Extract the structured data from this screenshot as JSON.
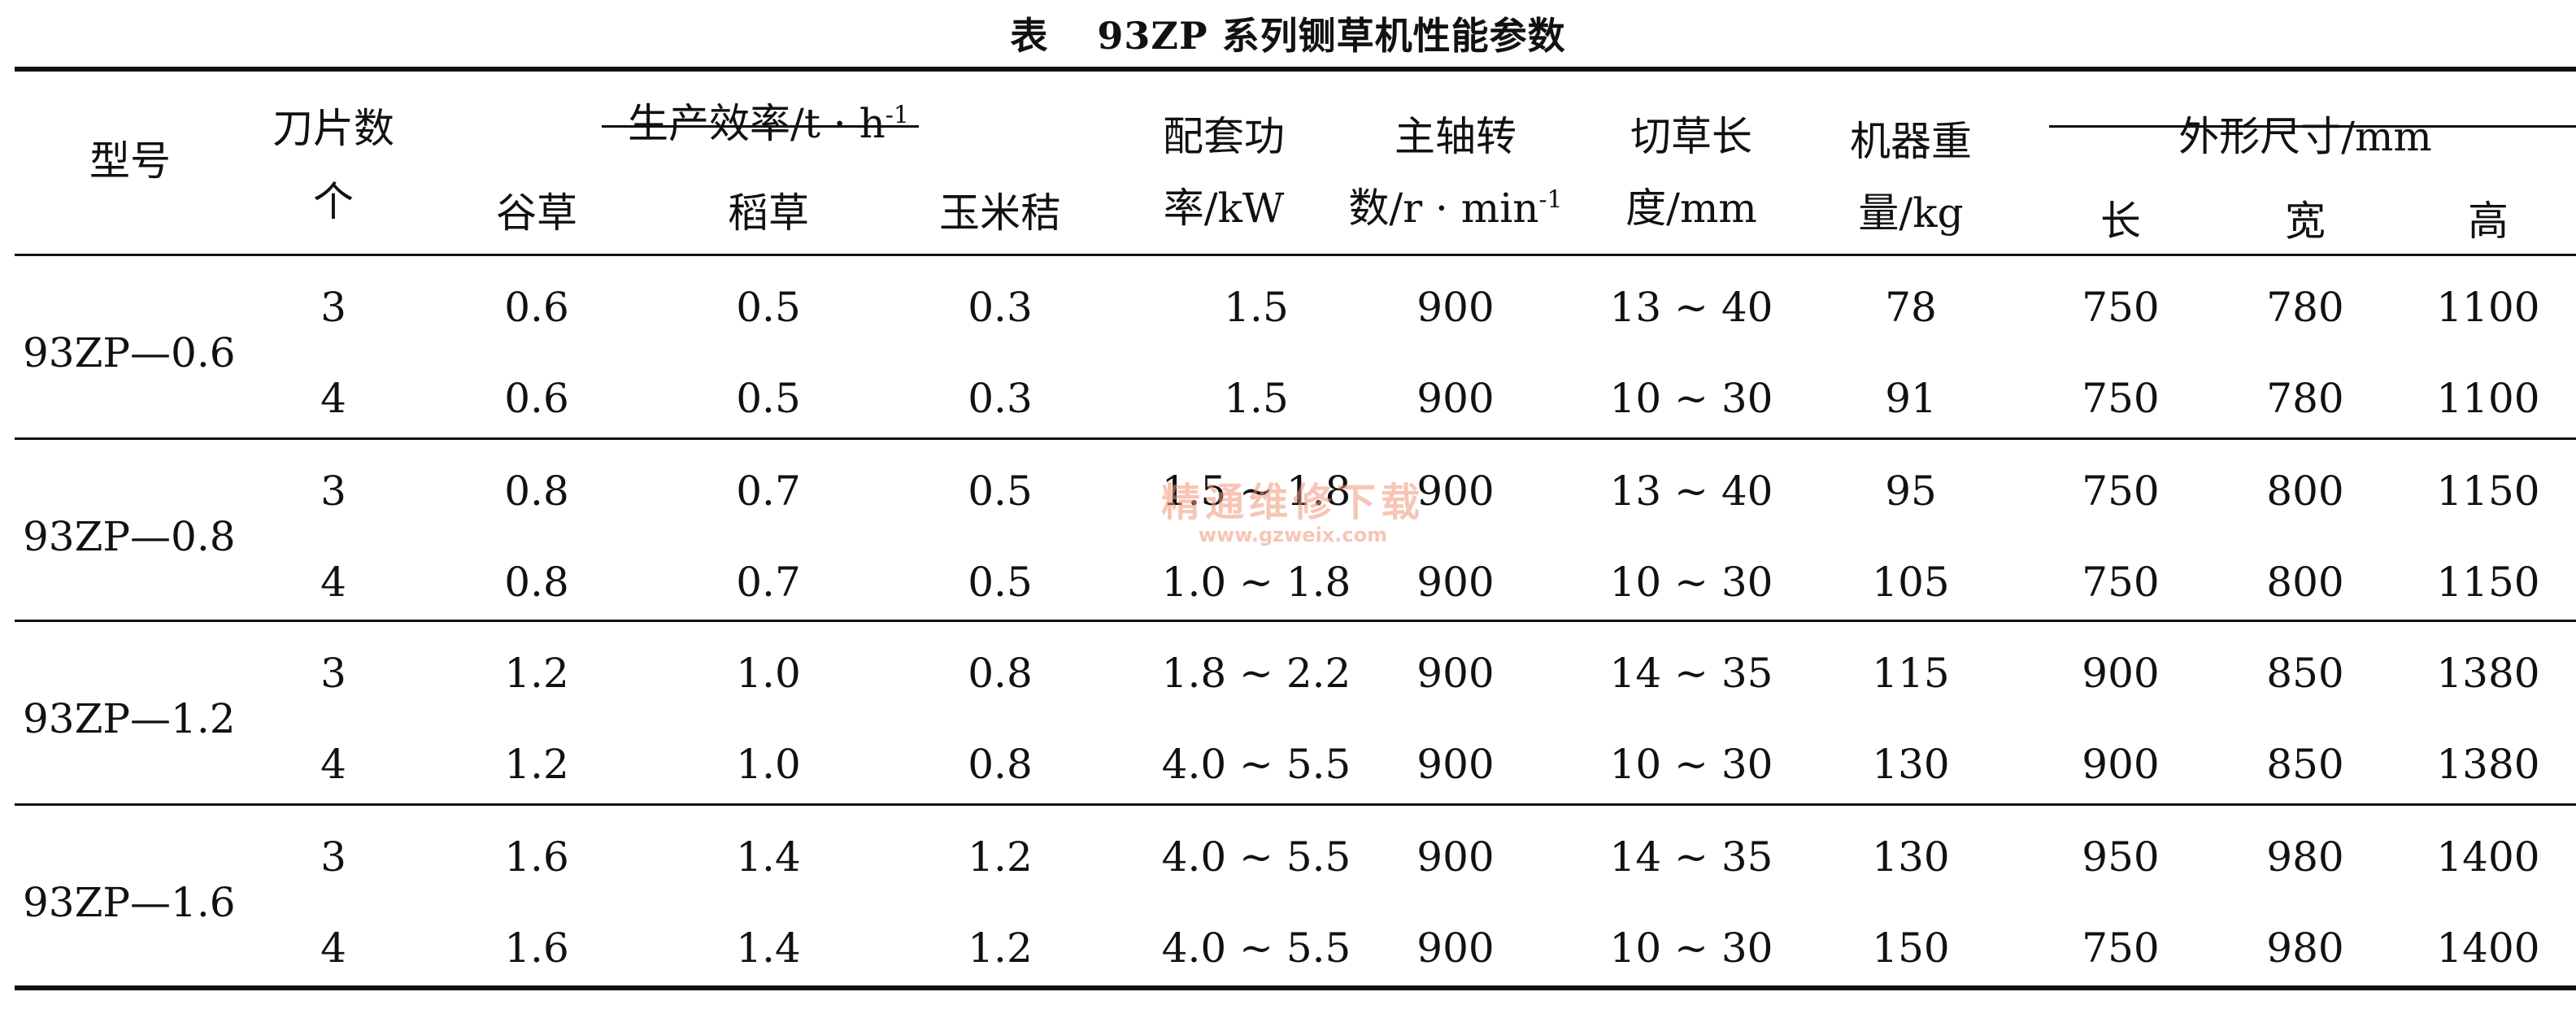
{
  "table_title": {
    "lead": "表",
    "text": "93ZP 系列铡草机性能参数"
  },
  "headers": {
    "model": "型号",
    "blades_line1": "刀片数",
    "blades_line2": "个",
    "efficiency": "生产效率/t · h",
    "efficiency_sup": "-1",
    "millet": "谷草",
    "rice": "稻草",
    "corn": "玉米秸",
    "power_line1": "配套功",
    "power_line2": "率/kW",
    "speed_line1": "主轴转",
    "speed_line2": "数/r · min",
    "speed_sup": "-1",
    "cut_line1": "切草长",
    "cut_line2": "度/mm",
    "weight_line1": "机器重",
    "weight_line2": "量/kg",
    "dims": "外形尺寸/mm",
    "length": "长",
    "width": "宽",
    "height": "高"
  },
  "groups": [
    {
      "model": "93ZP—0.6",
      "rows": [
        {
          "blades": "3",
          "millet": "0.6",
          "rice": "0.5",
          "corn": "0.3",
          "power": "1.5",
          "speed": "900",
          "cut": "13 ~ 40",
          "weight": "78",
          "length": "750",
          "width": "780",
          "height": "1100"
        },
        {
          "blades": "4",
          "millet": "0.6",
          "rice": "0.5",
          "corn": "0.3",
          "power": "1.5",
          "speed": "900",
          "cut": "10 ~ 30",
          "weight": "91",
          "length": "750",
          "width": "780",
          "height": "1100"
        }
      ]
    },
    {
      "model": "93ZP—0.8",
      "rows": [
        {
          "blades": "3",
          "millet": "0.8",
          "rice": "0.7",
          "corn": "0.5",
          "power": "1.5 ~ 1.8",
          "speed": "900",
          "cut": "13 ~ 40",
          "weight": "95",
          "length": "750",
          "width": "800",
          "height": "1150"
        },
        {
          "blades": "4",
          "millet": "0.8",
          "rice": "0.7",
          "corn": "0.5",
          "power": "1.0 ~ 1.8",
          "speed": "900",
          "cut": "10 ~ 30",
          "weight": "105",
          "length": "750",
          "width": "800",
          "height": "1150"
        }
      ]
    },
    {
      "model": "93ZP—1.2",
      "rows": [
        {
          "blades": "3",
          "millet": "1.2",
          "rice": "1.0",
          "corn": "0.8",
          "power": "1.8 ~ 2.2",
          "speed": "900",
          "cut": "14 ~ 35",
          "weight": "115",
          "length": "900",
          "width": "850",
          "height": "1380"
        },
        {
          "blades": "4",
          "millet": "1.2",
          "rice": "1.0",
          "corn": "0.8",
          "power": "4.0 ~ 5.5",
          "speed": "900",
          "cut": "10 ~ 30",
          "weight": "130",
          "length": "900",
          "width": "850",
          "height": "1380"
        }
      ]
    },
    {
      "model": "93ZP—1.6",
      "rows": [
        {
          "blades": "3",
          "millet": "1.6",
          "rice": "1.4",
          "corn": "1.2",
          "power": "4.0 ~ 5.5",
          "speed": "900",
          "cut": "14 ~ 35",
          "weight": "130",
          "length": "950",
          "width": "980",
          "height": "1400"
        },
        {
          "blades": "4",
          "millet": "1.6",
          "rice": "1.4",
          "corn": "1.2",
          "power": "4.0 ~ 5.5",
          "speed": "900",
          "cut": "10 ~ 30",
          "weight": "150",
          "length": "750",
          "width": "980",
          "height": "1400"
        }
      ]
    }
  ],
  "watermark": {
    "cn": "精通维修下载",
    "url": "www.gzweix.com"
  }
}
